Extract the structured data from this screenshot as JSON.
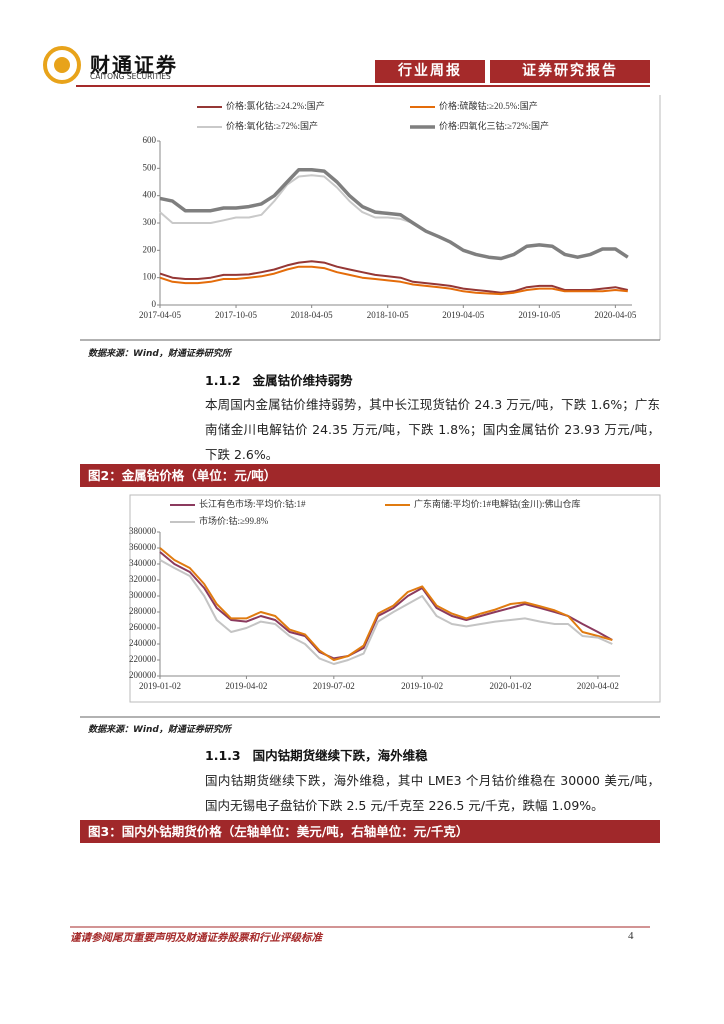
{
  "header": {
    "brand": "财通证券",
    "brand_en": "CAITONG SECURITIES",
    "tags": [
      "行业周报",
      "证券研究报告"
    ]
  },
  "document": {
    "source_1": "数据来源：Wind，财通证券研究所",
    "section_1": {
      "number": "1.1.2",
      "title": "金属钴价维持弱势"
    },
    "paragraph_1": "本周国内金属钴价维持弱势，其中长江现货钴价 24.3 万元/吨，下跌 1.6%；广东南储金川电解钴价 24.35 万元/吨，下跌 1.8%；国内金属钴价 23.93 万元/吨，下跌 2.6%。",
    "figure_2_caption": "图2：金属钴价格（单位：元/吨）",
    "source_2": "数据来源：Wind，财通证券研究所",
    "section_2": {
      "number": "1.1.3",
      "title": "国内钴期货继续下跌，海外维稳"
    },
    "paragraph_2": "国内钴期货继续下跌，海外维稳，其中 LME3 个月钴价维稳在 30000 美元/吨，国内无锡电子盘钴价下跌 2.5 元/千克至 226.5 元/千克，跌幅 1.09%。",
    "figure_3_caption": "图3：国内外钴期货价格（左轴单位：美元/吨，右轴单位：元/千克）"
  },
  "footer": {
    "disclaimer": "谨请参阅尾页重要声明及财通证券股票和行业评级标准",
    "page_number": "4"
  },
  "chart_data": [
    {
      "type": "line",
      "grid": false,
      "x": [
        "2017-04-05",
        "2017-05-05",
        "2017-06-05",
        "2017-07-05",
        "2017-08-05",
        "2017-09-05",
        "2017-10-05",
        "2017-11-05",
        "2017-12-05",
        "2018-01-05",
        "2018-02-05",
        "2018-03-05",
        "2018-04-05",
        "2018-05-05",
        "2018-06-05",
        "2018-07-05",
        "2018-08-05",
        "2018-09-05",
        "2018-10-05",
        "2018-11-05",
        "2018-12-05",
        "2019-01-05",
        "2019-02-05",
        "2019-03-05",
        "2019-04-05",
        "2019-05-05",
        "2019-06-05",
        "2019-07-05",
        "2019-08-05",
        "2019-09-05",
        "2019-10-05",
        "2019-11-05",
        "2019-12-05",
        "2020-01-05",
        "2020-02-05",
        "2020-03-05",
        "2020-04-05",
        "2020-05-05"
      ],
      "xlim": [
        "2017-04-05",
        "2020-05-15"
      ],
      "xticks": [
        "2017-04-05",
        "2017-10-05",
        "2018-04-05",
        "2018-10-05",
        "2019-04-05",
        "2019-10-05",
        "2020-04-05"
      ],
      "ylim": [
        0,
        600
      ],
      "yticks": [
        0,
        100,
        200,
        300,
        400,
        500,
        600
      ],
      "series": [
        {
          "name": "价格:氯化钴:≥24.2%:国产",
          "color": "#953735",
          "linewidth": 2,
          "values": [
            115,
            100,
            95,
            95,
            100,
            110,
            110,
            112,
            120,
            130,
            145,
            155,
            160,
            155,
            140,
            130,
            120,
            110,
            105,
            100,
            85,
            80,
            75,
            70,
            60,
            55,
            50,
            45,
            50,
            65,
            70,
            70,
            55,
            55,
            55,
            60,
            65,
            55
          ]
        },
        {
          "name": "价格:硫酸钴:≥20.5%:国产",
          "color": "#e46c0a",
          "linewidth": 2,
          "values": [
            100,
            85,
            80,
            80,
            85,
            95,
            95,
            100,
            105,
            115,
            130,
            140,
            140,
            135,
            120,
            110,
            100,
            95,
            90,
            85,
            75,
            70,
            65,
            60,
            50,
            45,
            42,
            40,
            45,
            55,
            60,
            60,
            50,
            50,
            50,
            50,
            55,
            50
          ]
        },
        {
          "name": "价格:氧化钴:≥72%:国产",
          "color": "#c9c9c9",
          "linewidth": 2,
          "values": [
            340,
            300,
            300,
            300,
            300,
            310,
            320,
            320,
            330,
            380,
            440,
            470,
            475,
            470,
            430,
            380,
            340,
            320,
            320,
            315,
            300,
            270,
            250,
            230,
            200,
            185,
            175,
            170,
            185,
            215,
            220,
            215,
            185,
            175,
            185,
            205,
            205,
            175
          ]
        },
        {
          "name": "价格:四氧化三钴:≥72%:国产",
          "color": "#7f7f7f",
          "linewidth": 3.5,
          "values": [
            390,
            380,
            345,
            345,
            345,
            355,
            355,
            360,
            370,
            400,
            450,
            495,
            495,
            490,
            450,
            400,
            360,
            340,
            335,
            330,
            300,
            270,
            250,
            230,
            200,
            185,
            175,
            170,
            185,
            215,
            220,
            215,
            185,
            175,
            185,
            205,
            205,
            175
          ]
        }
      ]
    },
    {
      "type": "line",
      "grid": false,
      "x": [
        "2019-01-02",
        "2019-01-17",
        "2019-02-02",
        "2019-02-17",
        "2019-03-02",
        "2019-03-17",
        "2019-04-02",
        "2019-04-17",
        "2019-05-02",
        "2019-05-17",
        "2019-06-02",
        "2019-06-17",
        "2019-07-02",
        "2019-07-17",
        "2019-08-02",
        "2019-08-17",
        "2019-09-02",
        "2019-09-17",
        "2019-10-02",
        "2019-10-17",
        "2019-11-02",
        "2019-11-17",
        "2019-12-02",
        "2019-12-17",
        "2020-01-02",
        "2020-01-17",
        "2020-02-02",
        "2020-02-17",
        "2020-03-02",
        "2020-03-17",
        "2020-04-02",
        "2020-04-17"
      ],
      "xlim": [
        "2019-01-02",
        "2020-04-25"
      ],
      "xticks": [
        "2019-01-02",
        "2019-04-02",
        "2019-07-02",
        "2019-10-02",
        "2020-01-02",
        "2020-04-02"
      ],
      "ylim": [
        200000,
        380000
      ],
      "yticks": [
        200000,
        220000,
        240000,
        260000,
        280000,
        300000,
        320000,
        340000,
        360000,
        380000
      ],
      "series": [
        {
          "name": "长江有色市场:平均价:钴:1#",
          "color": "#8b3a5e",
          "linewidth": 2,
          "values": [
            355000,
            340000,
            330000,
            310000,
            285000,
            270000,
            268000,
            275000,
            270000,
            255000,
            250000,
            230000,
            222000,
            225000,
            235000,
            275000,
            285000,
            300000,
            310000,
            285000,
            275000,
            270000,
            275000,
            280000,
            285000,
            290000,
            285000,
            280000,
            275000,
            265000,
            255000,
            245000
          ]
        },
        {
          "name": "广东南储:平均价:1#电解钴(金川):佛山仓库",
          "color": "#e07b10",
          "linewidth": 2,
          "values": [
            360000,
            345000,
            335000,
            315000,
            290000,
            272000,
            272000,
            280000,
            275000,
            258000,
            252000,
            232000,
            220000,
            225000,
            238000,
            278000,
            288000,
            305000,
            312000,
            288000,
            278000,
            272000,
            278000,
            283000,
            290000,
            292000,
            287000,
            282000,
            275000,
            255000,
            250000,
            245000
          ]
        },
        {
          "name": "市场价:钴:≥99.8%",
          "color": "#c4c4c4",
          "linewidth": 2,
          "values": [
            345000,
            335000,
            325000,
            300000,
            270000,
            255000,
            260000,
            268000,
            265000,
            250000,
            240000,
            222000,
            215000,
            220000,
            228000,
            268000,
            280000,
            290000,
            300000,
            275000,
            265000,
            262000,
            265000,
            268000,
            270000,
            272000,
            268000,
            265000,
            265000,
            250000,
            248000,
            240000
          ]
        }
      ]
    }
  ]
}
